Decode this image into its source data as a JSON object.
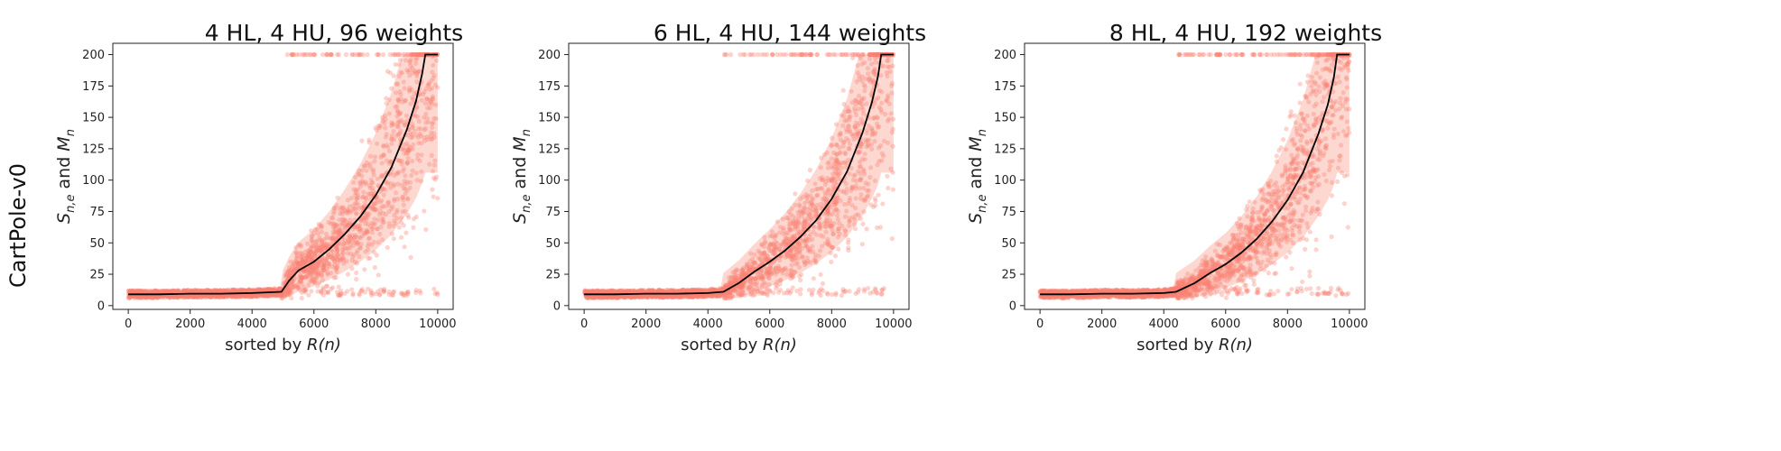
{
  "row_label": "CartPole-v0",
  "colors": {
    "scatter": "#fa8072",
    "band": "#f9b8ac",
    "mean_line": "#000000",
    "axis": "#222222"
  },
  "chart_data": [
    {
      "type": "scatter",
      "title": "4 HL, 4 HU, 96 weights",
      "xlabel": "sorted by R(n)",
      "ylabel": "S_{n,e} and M_n",
      "xlim": [
        -500,
        10500
      ],
      "ylim": [
        -3,
        209
      ],
      "xticks": [
        0,
        2000,
        4000,
        6000,
        8000,
        10000
      ],
      "yticks": [
        0,
        25,
        50,
        75,
        100,
        125,
        150,
        175,
        200
      ],
      "x_threshold": 4950,
      "mean_curve": {
        "name": "M_n",
        "x": [
          0,
          1000,
          2000,
          3000,
          4000,
          4950,
          5200,
          5500,
          6000,
          6500,
          7000,
          7500,
          8000,
          8500,
          9000,
          9300,
          9500,
          9600,
          9700,
          10000
        ],
        "y": [
          9,
          9,
          9.5,
          9.5,
          10,
          11,
          20,
          28,
          35,
          45,
          57,
          71,
          88,
          110,
          140,
          163,
          185,
          200,
          200,
          200
        ]
      },
      "samples": {
        "name": "S_{n,e}",
        "n_points": 2600
      }
    },
    {
      "type": "scatter",
      "title": "6 HL, 4 HU, 144 weights",
      "xlabel": "sorted by R(n)",
      "ylabel": "S_{n,e} and M_n",
      "xlim": [
        -500,
        10500
      ],
      "ylim": [
        -3,
        209
      ],
      "xticks": [
        0,
        2000,
        4000,
        6000,
        8000,
        10000
      ],
      "yticks": [
        0,
        25,
        50,
        75,
        100,
        125,
        150,
        175,
        200
      ],
      "x_threshold": 4500,
      "mean_curve": {
        "name": "M_n",
        "x": [
          0,
          1000,
          2000,
          3000,
          4000,
          4500,
          5000,
          5500,
          6000,
          6500,
          7000,
          7500,
          8000,
          8500,
          9000,
          9300,
          9500,
          9600,
          9700,
          10000
        ],
        "y": [
          9,
          9,
          9.5,
          9.5,
          10,
          11,
          18,
          27,
          35,
          44,
          55,
          68,
          85,
          107,
          138,
          162,
          183,
          200,
          200,
          200
        ]
      },
      "samples": {
        "name": "S_{n,e}",
        "n_points": 2600
      }
    },
    {
      "type": "scatter",
      "title": "8 HL, 4 HU, 192 weights",
      "xlabel": "sorted by R(n)",
      "ylabel": "S_{n,e} and M_n",
      "xlim": [
        -500,
        10500
      ],
      "ylim": [
        -3,
        209
      ],
      "xticks": [
        0,
        2000,
        4000,
        6000,
        8000,
        10000
      ],
      "yticks": [
        0,
        25,
        50,
        75,
        100,
        125,
        150,
        175,
        200
      ],
      "x_threshold": 4400,
      "mean_curve": {
        "name": "M_n",
        "x": [
          0,
          1000,
          2000,
          3000,
          4000,
          4400,
          5000,
          5500,
          6000,
          6500,
          7000,
          7500,
          8000,
          8500,
          9000,
          9300,
          9500,
          9600,
          9700,
          10000
        ],
        "y": [
          9,
          9,
          9.5,
          9.5,
          10,
          11,
          18,
          26,
          33,
          42,
          53,
          67,
          84,
          106,
          137,
          160,
          182,
          200,
          200,
          200
        ]
      },
      "samples": {
        "name": "S_{n,e}",
        "n_points": 2600
      }
    }
  ]
}
